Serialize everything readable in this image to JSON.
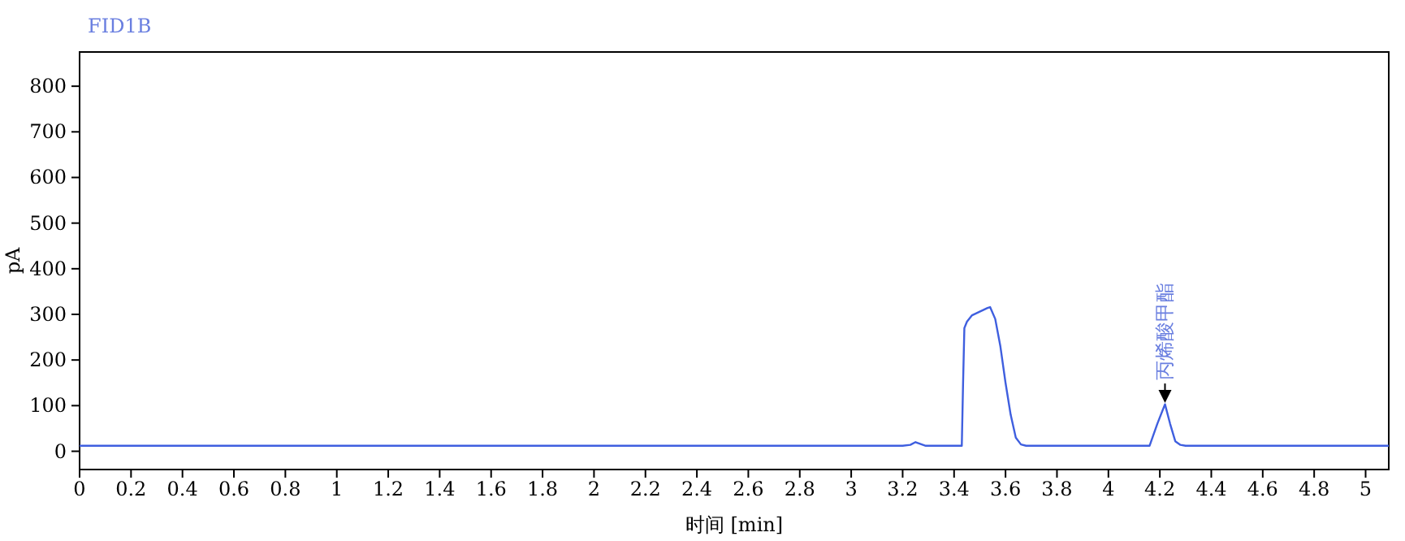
{
  "chart_data": {
    "type": "line",
    "title": "FID1B",
    "xlabel": "时间 [min]",
    "ylabel": "pA",
    "xlim": [
      0,
      5.09
    ],
    "ylim": [
      -40,
      875
    ],
    "xticks": [
      0,
      0.2,
      0.4,
      0.6,
      0.8,
      1,
      1.2,
      1.4,
      1.6,
      1.8,
      2,
      2.2,
      2.4,
      2.6,
      2.8,
      3,
      3.2,
      3.4,
      3.6,
      3.8,
      4,
      4.2,
      4.4,
      4.6,
      4.8,
      5
    ],
    "yticks": [
      0,
      100,
      200,
      300,
      400,
      500,
      600,
      700,
      800
    ],
    "grid": false,
    "marker": "none",
    "line_style": "solid",
    "series": [
      {
        "color": "#3f5fdf",
        "x": [
          0,
          3.2,
          3.23,
          3.25,
          3.27,
          3.29,
          3.43,
          3.435,
          3.44,
          3.45,
          3.47,
          3.5,
          3.53,
          3.54,
          3.56,
          3.58,
          3.6,
          3.62,
          3.64,
          3.66,
          3.68,
          3.72,
          4.16,
          4.19,
          4.22,
          4.24,
          4.26,
          4.28,
          4.3,
          5.09
        ],
        "values": [
          12,
          12,
          14,
          20,
          16,
          12,
          12,
          150,
          270,
          284,
          298,
          306,
          314,
          316,
          290,
          230,
          150,
          80,
          30,
          15,
          12,
          12,
          12,
          60,
          103,
          60,
          22,
          14,
          12,
          12
        ]
      }
    ],
    "annotations": [
      {
        "text": "丙烯酸甲酯",
        "x": 4.22,
        "y": 120
      }
    ]
  }
}
